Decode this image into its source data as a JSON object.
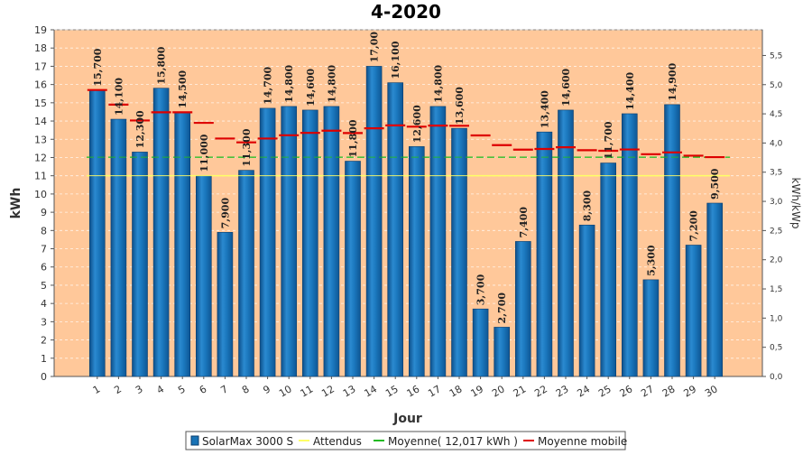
{
  "chart_data": {
    "type": "bar",
    "title": "4-2020",
    "xlabel": "Jour",
    "ylabel": "kWh",
    "y2label": "kWh/kWp",
    "categories": [
      "1",
      "2",
      "3",
      "4",
      "5",
      "6",
      "7",
      "8",
      "9",
      "10",
      "11",
      "12",
      "13",
      "14",
      "15",
      "16",
      "17",
      "18",
      "19",
      "20",
      "21",
      "22",
      "23",
      "24",
      "25",
      "26",
      "27",
      "28",
      "29",
      "30"
    ],
    "series": [
      {
        "name": "SolarMax 3000 S",
        "values": [
          15.7,
          14.1,
          12.3,
          15.8,
          14.5,
          11.0,
          7.9,
          11.3,
          14.7,
          14.8,
          14.6,
          14.8,
          11.8,
          17.0,
          16.1,
          12.6,
          14.8,
          13.6,
          3.7,
          2.7,
          7.4,
          13.4,
          14.6,
          8.3,
          11.7,
          14.4,
          5.3,
          14.9,
          7.2,
          9.5
        ],
        "labels": [
          "15,700",
          "14,100",
          "12,300",
          "15,800",
          "14,500",
          "11,000",
          "7,900",
          "11,300",
          "14,700",
          "14,800",
          "14,600",
          "14,800",
          "11,800",
          "17,00",
          "16,100",
          "12,600",
          "14,800",
          "13,600",
          "3,700",
          "2,700",
          "7,400",
          "13,400",
          "14,600",
          "8,300",
          "11,700",
          "14,400",
          "5,300",
          "14,900",
          "7,200",
          "9,500"
        ]
      },
      {
        "name": "Attendus",
        "value": 11.0
      },
      {
        "name": "Moyenne( 12,017 kWh )",
        "value": 12.017
      },
      {
        "name": "Moyenne mobile",
        "values": [
          15.7,
          14.9,
          14.03,
          14.48,
          14.48,
          13.9,
          13.04,
          12.83,
          13.04,
          13.22,
          13.35,
          13.47,
          13.34,
          13.6,
          13.76,
          13.69,
          13.75,
          13.74,
          13.21,
          12.68,
          12.43,
          12.47,
          12.56,
          12.4,
          12.37,
          12.44,
          12.18,
          12.28,
          12.1,
          12.02
        ]
      }
    ],
    "ylim": [
      0,
      19
    ],
    "yticks": [
      "0",
      "1",
      "2",
      "3",
      "4",
      "5",
      "6",
      "7",
      "8",
      "9",
      "10",
      "11",
      "12",
      "13",
      "14",
      "15",
      "16",
      "17",
      "18",
      "19"
    ],
    "y2ticks": [
      {
        "label": "0,0",
        "value": 0.0
      },
      {
        "label": "0,5",
        "value": 0.5
      },
      {
        "label": "1,0",
        "value": 1.0
      },
      {
        "label": "1,5",
        "value": 1.5
      },
      {
        "label": "2,0",
        "value": 2.0
      },
      {
        "label": "2,5",
        "value": 2.5
      },
      {
        "label": "3,0",
        "value": 3.0
      },
      {
        "label": "3,5",
        "value": 3.5
      },
      {
        "label": "4,0",
        "value": 4.0
      },
      {
        "label": "4,5",
        "value": 4.5
      },
      {
        "label": "5,0",
        "value": 5.0
      },
      {
        "label": "5,5",
        "value": 5.5
      }
    ],
    "y2max": 5.94,
    "grid": true,
    "legend_position": "bottom",
    "colors": {
      "plot_background": "#FFC89A",
      "bar": "#1873B6",
      "bar_light": "#4FA6E0",
      "attendus": "#FFFF66",
      "moyenne": "#22BB22",
      "moyenne_mobile": "#DD0000"
    }
  }
}
